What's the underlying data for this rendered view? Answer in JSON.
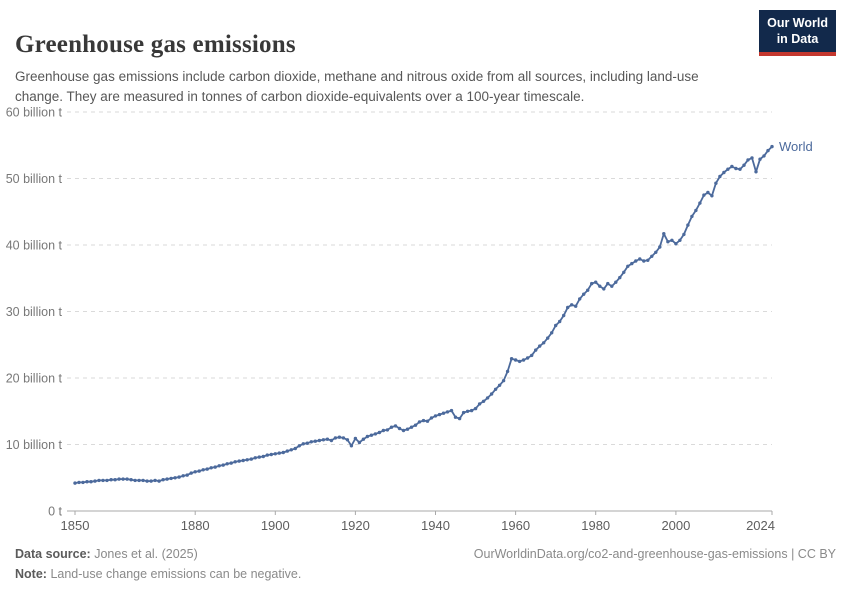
{
  "header": {
    "title": "Greenhouse gas emissions",
    "subtitle": "Greenhouse gas emissions include carbon dioxide, methane and nitrous oxide from all sources, including land-use change. They are measured in tonnes of carbon dioxide-equivalents over a 100-year timescale.",
    "logo": {
      "line1": "Our World",
      "line2": "in Data",
      "bg_color": "#12294B",
      "bar_color": "#C4372E"
    }
  },
  "chart_data": {
    "type": "line",
    "title": "Greenhouse gas emissions",
    "xlabel": "",
    "ylabel": "tonnes of carbon dioxide-equivalents",
    "xlim": [
      1850,
      2024
    ],
    "ylim": [
      0,
      60
    ],
    "grid": "horizontal-dashed",
    "grid_color": "#dadada",
    "axis_color": "#a9a9a9",
    "line_color": "#4C6A9C",
    "x_ticks": [
      1850,
      1880,
      1900,
      1920,
      1940,
      1960,
      1980,
      2000,
      2024
    ],
    "y_ticks": [
      {
        "value": 0,
        "label": "0 t"
      },
      {
        "value": 10,
        "label": "10 billion t"
      },
      {
        "value": 20,
        "label": "20 billion t"
      },
      {
        "value": 30,
        "label": "30 billion t"
      },
      {
        "value": 40,
        "label": "40 billion t"
      },
      {
        "value": 50,
        "label": "50 billion t"
      },
      {
        "value": 60,
        "label": "60 billion t"
      }
    ],
    "series": [
      {
        "name": "World",
        "start_year": 1850,
        "end_year": 2024,
        "unit": "billion tonnes CO2-eq",
        "values": [
          4.2,
          4.3,
          4.3,
          4.4,
          4.4,
          4.5,
          4.6,
          4.6,
          4.6,
          4.7,
          4.7,
          4.8,
          4.8,
          4.8,
          4.7,
          4.6,
          4.6,
          4.6,
          4.5,
          4.5,
          4.6,
          4.5,
          4.7,
          4.8,
          4.9,
          5.0,
          5.1,
          5.3,
          5.4,
          5.7,
          5.9,
          6.0,
          6.2,
          6.3,
          6.5,
          6.6,
          6.8,
          6.9,
          7.1,
          7.2,
          7.4,
          7.5,
          7.6,
          7.7,
          7.8,
          8.0,
          8.1,
          8.2,
          8.4,
          8.5,
          8.6,
          8.7,
          8.8,
          9.0,
          9.2,
          9.4,
          9.8,
          10.1,
          10.2,
          10.4,
          10.5,
          10.6,
          10.7,
          10.8,
          10.6,
          11.0,
          11.1,
          11.0,
          10.7,
          9.8,
          10.9,
          10.3,
          10.8,
          11.2,
          11.4,
          11.6,
          11.8,
          12.1,
          12.2,
          12.6,
          12.8,
          12.4,
          12.1,
          12.3,
          12.6,
          12.9,
          13.4,
          13.6,
          13.5,
          14.0,
          14.3,
          14.5,
          14.7,
          14.9,
          15.1,
          14.1,
          13.9,
          14.8,
          15.0,
          15.1,
          15.4,
          16.1,
          16.5,
          17.0,
          17.6,
          18.3,
          18.9,
          19.6,
          21.0,
          22.9,
          22.7,
          22.5,
          22.7,
          23.0,
          23.4,
          24.2,
          24.8,
          25.3,
          26.0,
          26.8,
          27.9,
          28.5,
          29.4,
          30.6,
          31.0,
          30.8,
          31.9,
          32.6,
          33.2,
          34.2,
          34.4,
          33.8,
          33.4,
          34.2,
          33.8,
          34.4,
          35.1,
          35.9,
          36.8,
          37.2,
          37.6,
          37.9,
          37.6,
          37.7,
          38.3,
          38.9,
          39.7,
          41.7,
          40.5,
          40.7,
          40.2,
          40.7,
          41.6,
          43.0,
          44.3,
          45.2,
          46.3,
          47.5,
          47.9,
          47.4,
          49.3,
          50.3,
          50.9,
          51.4,
          51.8,
          51.5,
          51.4,
          52.0,
          52.8,
          53.1,
          51.0,
          52.9,
          53.4,
          54.2,
          54.8
        ]
      }
    ]
  },
  "footer": {
    "source_label": "Data source:",
    "source_value": "Jones et al. (2025)",
    "note_label": "Note:",
    "note_value": "Land-use change emissions can be negative.",
    "url": "OurWorldinData.org/co2-and-greenhouse-gas-emissions",
    "separator": "|",
    "license": "CC BY"
  }
}
